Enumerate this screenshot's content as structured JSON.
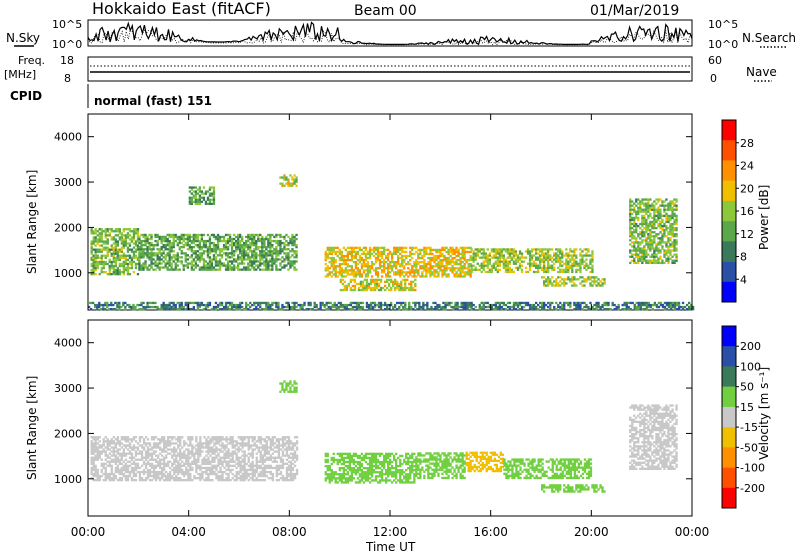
{
  "header": {
    "radar": "Hokkaido East (fitACF)",
    "beam": "Beam 00",
    "date": "01/Mar/2019"
  },
  "noise_panel": {
    "left_label": "N.Sky",
    "right_label": "N.Search",
    "left_ticks": [
      "10^5",
      "10^0"
    ],
    "right_ticks": [
      "10^5",
      "10^0"
    ]
  },
  "freq_panel": {
    "left_label_top": "Freq.",
    "left_label_units": "[MHz]",
    "left_ticks": [
      "18",
      "8"
    ],
    "right_label": "Nave",
    "right_ticks": [
      "60",
      "0"
    ]
  },
  "cpid_panel": {
    "label": "CPID",
    "mode": "normal (fast) 151"
  },
  "time_axis": {
    "title": "Time UT",
    "ticks": [
      "00:00",
      "04:00",
      "08:00",
      "12:00",
      "16:00",
      "20:00",
      "00:00"
    ]
  },
  "chart_data": [
    {
      "type": "heatmap",
      "name": "power",
      "ylabel": "Slant Range [km]",
      "ylim": [
        180,
        4500
      ],
      "y_ticks": [
        "1000",
        "2000",
        "3000",
        "4000"
      ],
      "colorbar_label": "Power [dB]",
      "colorbar_ticks": [
        "28",
        "24",
        "20",
        "16",
        "12",
        "8",
        "4"
      ],
      "colors": [
        "#0000ff",
        "#2a4fa6",
        "#3a7a5a",
        "#5aa84a",
        "#8cc83a",
        "#f0c000",
        "#ff9000",
        "#ff5000",
        "#ff0000"
      ],
      "regions": [
        {
          "t": [
            0.1,
            2.0
          ],
          "r": [
            950,
            1950
          ],
          "level": 16
        },
        {
          "t": [
            2.0,
            8.3
          ],
          "r": [
            1050,
            1850
          ],
          "level": 14
        },
        {
          "t": [
            9.4,
            15.2
          ],
          "r": [
            900,
            1550
          ],
          "level": 22
        },
        {
          "t": [
            10.0,
            13.0
          ],
          "r": [
            600,
            850
          ],
          "level": 20
        },
        {
          "t": [
            15.2,
            20.0
          ],
          "r": [
            1000,
            1500
          ],
          "level": 18
        },
        {
          "t": [
            18.0,
            20.5
          ],
          "r": [
            700,
            900
          ],
          "level": 18
        },
        {
          "t": [
            21.5,
            23.4
          ],
          "r": [
            1200,
            2600
          ],
          "level": 16
        },
        {
          "t": [
            4.0,
            5.0
          ],
          "r": [
            2500,
            2900
          ],
          "level": 13
        },
        {
          "t": [
            7.6,
            8.3
          ],
          "r": [
            2900,
            3150
          ],
          "level": 20
        },
        {
          "t": [
            0.0,
            24.0
          ],
          "r": [
            180,
            320
          ],
          "level": 10
        }
      ]
    },
    {
      "type": "heatmap",
      "name": "velocity",
      "ylabel": "Slant Range [km]",
      "ylim": [
        180,
        4500
      ],
      "y_ticks": [
        "1000",
        "2000",
        "3000",
        "4000"
      ],
      "colorbar_label": "Velocity [m s⁻¹]",
      "colorbar_ticks": [
        "200",
        "100",
        "50",
        "15",
        "-15",
        "-50",
        "-100",
        "-200"
      ],
      "colors": [
        "#ff0000",
        "#ff5000",
        "#ff9000",
        "#f0c000",
        "#c8c8c8",
        "#70d040",
        "#3a7a5a",
        "#2a4fa6",
        "#0000ff"
      ],
      "regions": [
        {
          "t": [
            0.1,
            8.3
          ],
          "r": [
            950,
            1900
          ],
          "level": 0
        },
        {
          "t": [
            9.4,
            13.0
          ],
          "r": [
            900,
            1550
          ],
          "level": 25
        },
        {
          "t": [
            13.0,
            15.0
          ],
          "r": [
            1000,
            1550
          ],
          "level": 30
        },
        {
          "t": [
            15.0,
            16.5
          ],
          "r": [
            1150,
            1600
          ],
          "level": -40
        },
        {
          "t": [
            16.5,
            20.0
          ],
          "r": [
            1000,
            1450
          ],
          "level": 30
        },
        {
          "t": [
            18.0,
            20.5
          ],
          "r": [
            700,
            850
          ],
          "level": 35
        },
        {
          "t": [
            21.5,
            23.4
          ],
          "r": [
            1200,
            2600
          ],
          "level": 0
        },
        {
          "t": [
            7.6,
            8.3
          ],
          "r": [
            2900,
            3150
          ],
          "level": 35
        }
      ]
    }
  ]
}
